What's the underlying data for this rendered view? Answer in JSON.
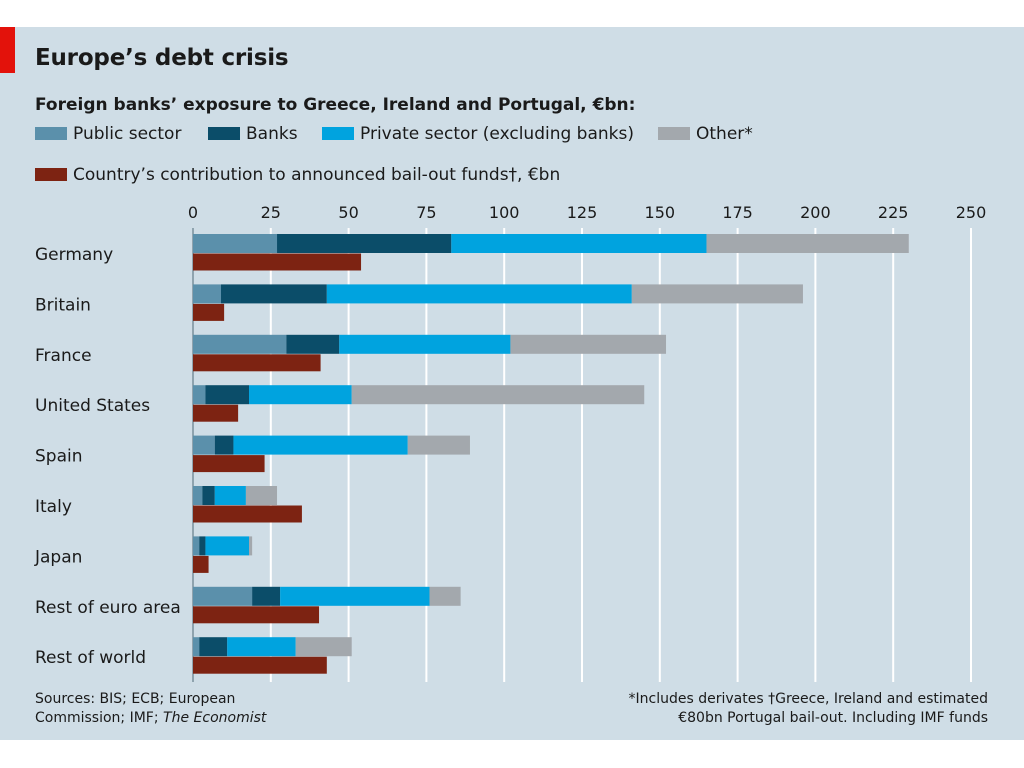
{
  "title": "Europe’s debt crisis",
  "subtitle": "Foreign banks’ exposure to Greece, Ireland and Portugal, €bn:",
  "legend": {
    "public": "Public sector",
    "banks": "Banks",
    "private": "Private sector (excluding banks)",
    "other": "Other*",
    "contribution": "Country’s contribution to announced bail-out funds†, €bn"
  },
  "sources": {
    "line1": "Sources: BIS; ECB; European",
    "line2_plain": "Commission; IMF; ",
    "line2_italic": "The Economist"
  },
  "footnotes": {
    "line1": "*Includes derivates   †Greece, Ireland and estimated",
    "line2": "€80bn Portugal bail-out. Including IMF funds"
  },
  "colors": {
    "public": "#5b90ab",
    "banks": "#0b4d69",
    "private": "#00a3df",
    "other": "#a3a8ad",
    "contribution": "#7d2312",
    "background": "#cfdde6",
    "accent": "#e3120b"
  },
  "chart_data": {
    "type": "bar",
    "orientation": "horizontal",
    "stacked": true,
    "title": "Europe’s debt crisis",
    "subtitle": "Foreign banks’ exposure to Greece, Ireland and Portugal, €bn:",
    "categories": [
      "Germany",
      "Britain",
      "France",
      "United States",
      "Spain",
      "Italy",
      "Japan",
      "Rest of euro area",
      "Rest of world"
    ],
    "xlim": [
      0,
      250
    ],
    "xticks": [
      0,
      25,
      50,
      75,
      100,
      125,
      150,
      175,
      200,
      225,
      250
    ],
    "grid": true,
    "legend_position": "top",
    "series": [
      {
        "name": "Public sector",
        "key": "public",
        "group": "exposure",
        "values": [
          27,
          9,
          30,
          4,
          7,
          3,
          2,
          19,
          2
        ]
      },
      {
        "name": "Banks",
        "key": "banks",
        "group": "exposure",
        "values": [
          56,
          34,
          17,
          14,
          6,
          4,
          2,
          9,
          9
        ]
      },
      {
        "name": "Private sector (excluding banks)",
        "key": "private",
        "group": "exposure",
        "values": [
          82,
          98,
          55,
          33,
          56,
          10,
          14,
          48,
          22
        ]
      },
      {
        "name": "Other*",
        "key": "other",
        "group": "exposure",
        "values": [
          65,
          55,
          50,
          94,
          20,
          10,
          1,
          10,
          18
        ]
      },
      {
        "name": "Country’s contribution to announced bail-out funds†, €bn",
        "key": "contribution",
        "group": "contribution",
        "values": [
          54,
          10,
          41,
          14.5,
          23,
          35,
          5,
          40.5,
          43
        ]
      }
    ]
  }
}
